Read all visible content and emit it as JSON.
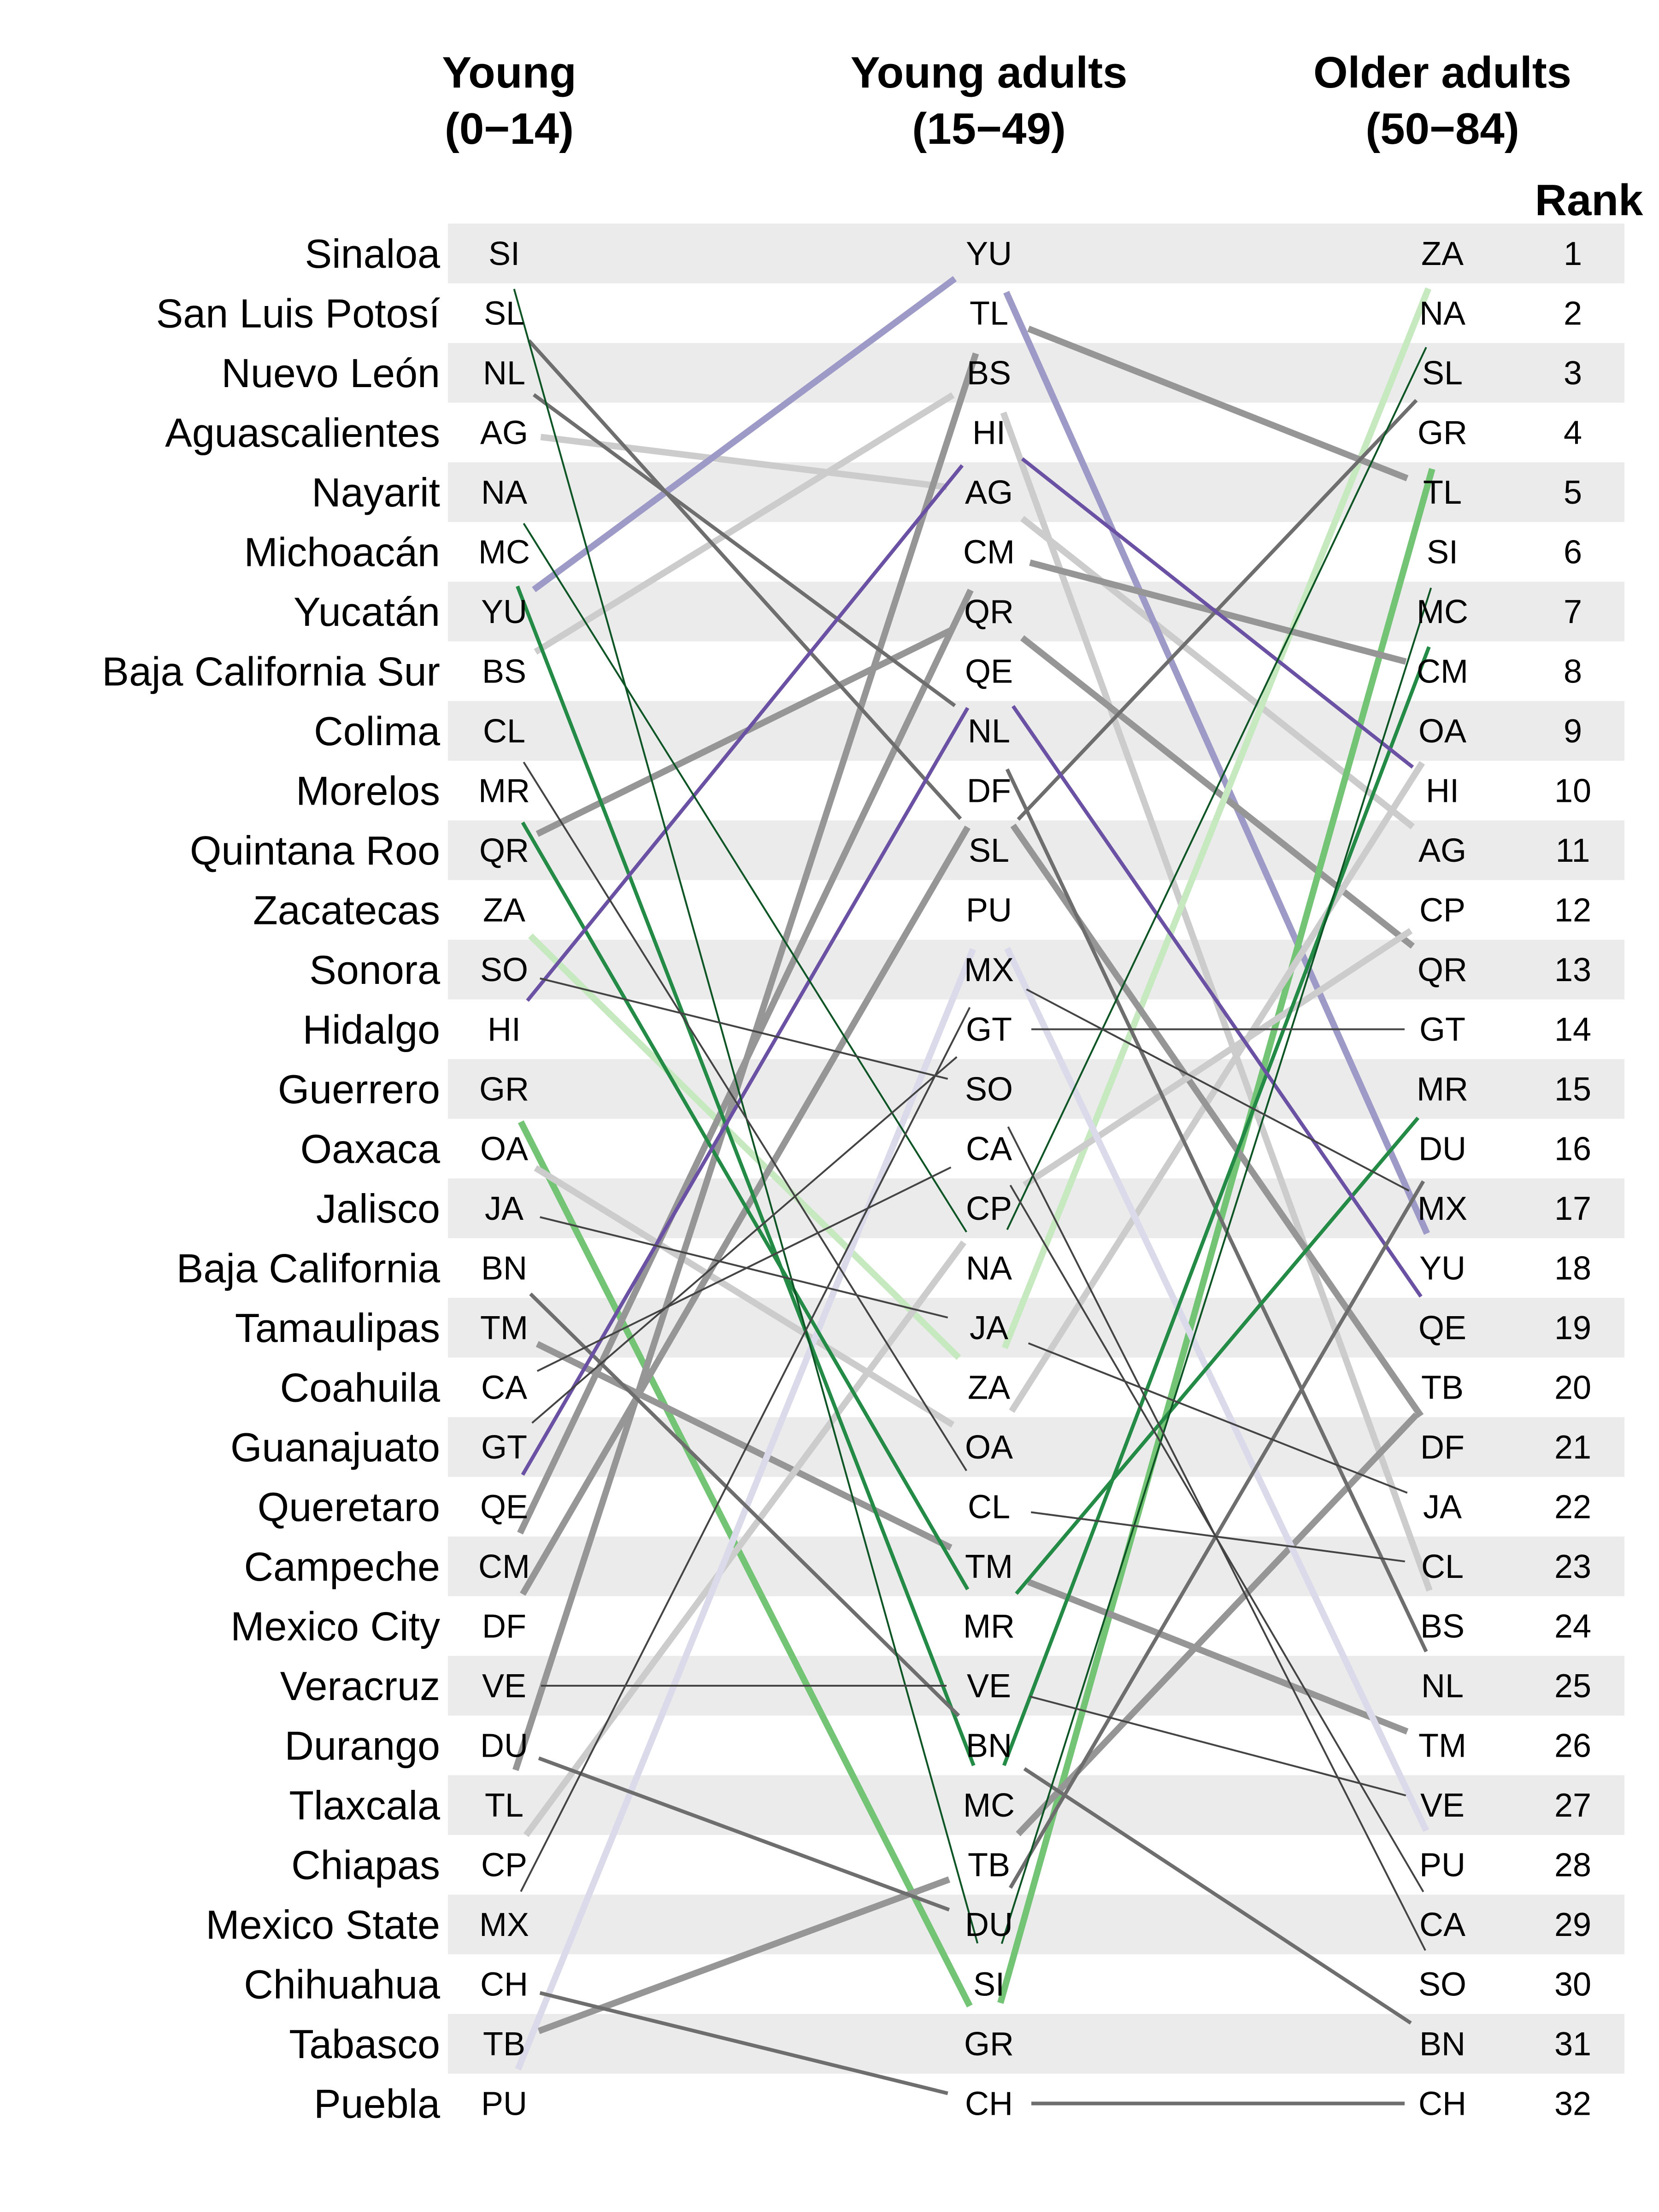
{
  "chart_data": {
    "type": "slope",
    "column_titles": [
      [
        "Young",
        "(0−14)"
      ],
      [
        "Young adults",
        "(15−49)"
      ],
      [
        "Older adults",
        "(50−84)"
      ]
    ],
    "rank_label": "Rank",
    "states": [
      {
        "name": "Sinaloa",
        "code": "SI",
        "ranks": [
          1,
          30,
          6
        ],
        "color": "#0e5526",
        "width": 4
      },
      {
        "name": "San Luis Potosí",
        "code": "SL",
        "ranks": [
          2,
          11,
          3
        ],
        "color": "#6e6e6e",
        "width": 8
      },
      {
        "name": "Nuevo León",
        "code": "NL",
        "ranks": [
          3,
          9,
          25
        ],
        "color": "#6e6e6e",
        "width": 8
      },
      {
        "name": "Aguascalientes",
        "code": "AG",
        "ranks": [
          4,
          5,
          11
        ],
        "color": "#cccccc",
        "width": 14
      },
      {
        "name": "Nayarit",
        "code": "NA",
        "ranks": [
          5,
          18,
          2
        ],
        "color": "#0e5526",
        "width": 4
      },
      {
        "name": "Michoacán",
        "code": "MC",
        "ranks": [
          6,
          27,
          7
        ],
        "color": "#238b45",
        "width": 8
      },
      {
        "name": "Yucatán",
        "code": "YU",
        "ranks": [
          7,
          1,
          18
        ],
        "color": "#9e9ac8",
        "width": 14
      },
      {
        "name": "Baja California Sur",
        "code": "BS",
        "ranks": [
          8,
          3,
          24
        ],
        "color": "#cccccc",
        "width": 14
      },
      {
        "name": "Colima",
        "code": "CL",
        "ranks": [
          9,
          22,
          23
        ],
        "color": "#444444",
        "width": 4
      },
      {
        "name": "Morelos",
        "code": "MR",
        "ranks": [
          10,
          24,
          15
        ],
        "color": "#238b45",
        "width": 8
      },
      {
        "name": "Quintana Roo",
        "code": "QR",
        "ranks": [
          11,
          7,
          13
        ],
        "color": "#969696",
        "width": 14
      },
      {
        "name": "Zacatecas",
        "code": "ZA",
        "ranks": [
          12,
          20,
          1
        ],
        "color": "#c7e9c0",
        "width": 14
      },
      {
        "name": "Sonora",
        "code": "SO",
        "ranks": [
          13,
          15,
          30
        ],
        "color": "#444444",
        "width": 4
      },
      {
        "name": "Hidalgo",
        "code": "HI",
        "ranks": [
          14,
          4,
          10
        ],
        "color": "#6a51a3",
        "width": 8
      },
      {
        "name": "Guerrero",
        "code": "GR",
        "ranks": [
          15,
          31,
          4
        ],
        "color": "#74c476",
        "width": 14
      },
      {
        "name": "Oaxaca",
        "code": "OA",
        "ranks": [
          16,
          21,
          9
        ],
        "color": "#cccccc",
        "width": 14
      },
      {
        "name": "Jalisco",
        "code": "JA",
        "ranks": [
          17,
          19,
          22
        ],
        "color": "#444444",
        "width": 4
      },
      {
        "name": "Baja California",
        "code": "BN",
        "ranks": [
          18,
          26,
          31
        ],
        "color": "#6e6e6e",
        "width": 8
      },
      {
        "name": "Tamaulipas",
        "code": "TM",
        "ranks": [
          19,
          23,
          26
        ],
        "color": "#969696",
        "width": 14
      },
      {
        "name": "Coahuila",
        "code": "CA",
        "ranks": [
          20,
          16,
          29
        ],
        "color": "#444444",
        "width": 4
      },
      {
        "name": "Guanajuato",
        "code": "GT",
        "ranks": [
          21,
          14,
          14
        ],
        "color": "#444444",
        "width": 4
      },
      {
        "name": "Queretaro",
        "code": "QE",
        "ranks": [
          22,
          8,
          19
        ],
        "color": "#6a51a3",
        "width": 8
      },
      {
        "name": "Campeche",
        "code": "CM",
        "ranks": [
          23,
          6,
          8
        ],
        "color": "#969696",
        "width": 14
      },
      {
        "name": "Mexico City",
        "code": "DF",
        "ranks": [
          24,
          10,
          21
        ],
        "color": "#969696",
        "width": 14
      },
      {
        "name": "Veracruz",
        "code": "VE",
        "ranks": [
          25,
          25,
          27
        ],
        "color": "#444444",
        "width": 4
      },
      {
        "name": "Durango",
        "code": "DU",
        "ranks": [
          26,
          29,
          16
        ],
        "color": "#6e6e6e",
        "width": 8
      },
      {
        "name": "Tlaxcala",
        "code": "TL",
        "ranks": [
          27,
          2,
          5
        ],
        "color": "#969696",
        "width": 14
      },
      {
        "name": "Chiapas",
        "code": "CP",
        "ranks": [
          28,
          17,
          12
        ],
        "color": "#cccccc",
        "width": 14
      },
      {
        "name": "Mexico State",
        "code": "MX",
        "ranks": [
          29,
          13,
          17
        ],
        "color": "#444444",
        "width": 4
      },
      {
        "name": "Chihuahua",
        "code": "CH",
        "ranks": [
          30,
          32,
          32
        ],
        "color": "#6e6e6e",
        "width": 8
      },
      {
        "name": "Tabasco",
        "code": "TB",
        "ranks": [
          31,
          28,
          20
        ],
        "color": "#969696",
        "width": 14
      },
      {
        "name": "Puebla",
        "code": "PU",
        "ranks": [
          32,
          12,
          28
        ],
        "color": "#dadaeb",
        "width": 14
      }
    ]
  }
}
